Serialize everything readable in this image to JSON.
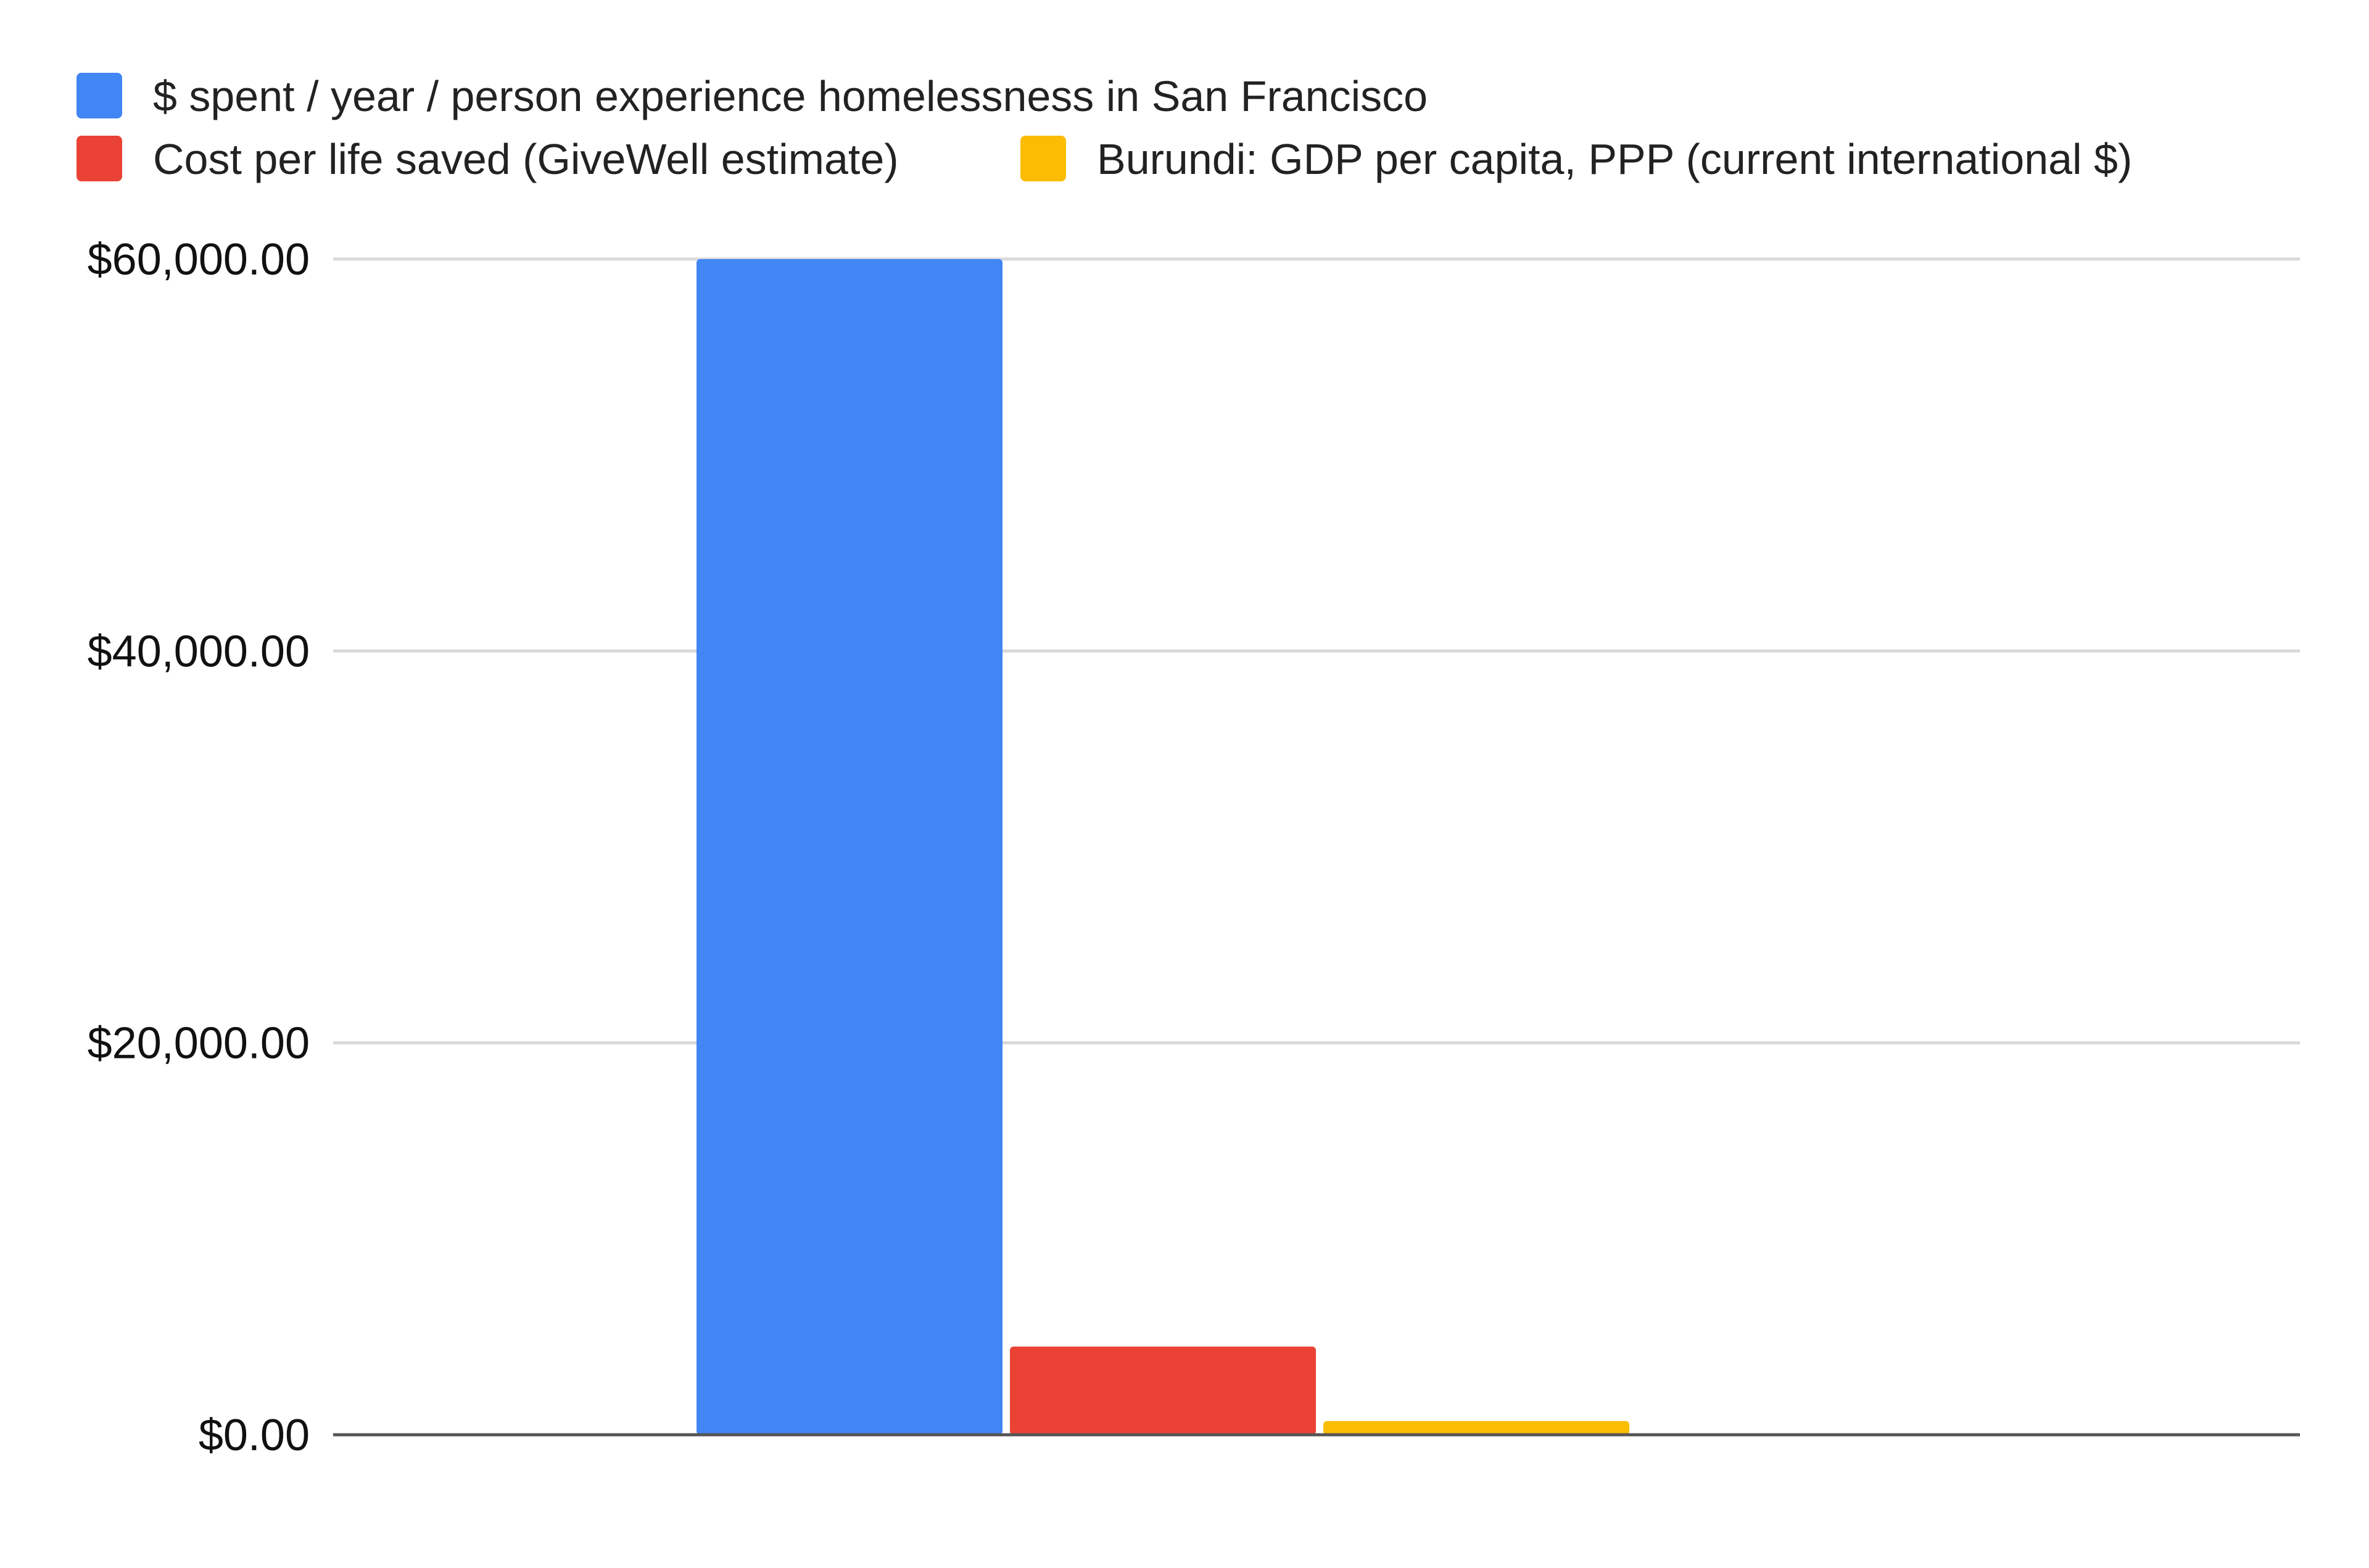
{
  "chart_data": {
    "type": "bar",
    "title": "",
    "xlabel": "",
    "ylabel": "",
    "categories": [
      ""
    ],
    "series": [
      {
        "name": "$ spent / year / person experience homelessness in San Francisco",
        "color": "#4285F4",
        "values": [
          60000
        ]
      },
      {
        "name": "Cost per life saved (GiveWell estimate)",
        "color": "#EA4335",
        "values": [
          4500
        ]
      },
      {
        "name": "Burundi: GDP per capita, PPP (current international $)",
        "color": "#FBBC04",
        "values": [
          700
        ]
      }
    ],
    "ylim": [
      0,
      60000
    ],
    "yticks": [
      {
        "value": 0,
        "label": "$0.00"
      },
      {
        "value": 20000,
        "label": "$20,000.00"
      },
      {
        "value": 40000,
        "label": "$40,000.00"
      },
      {
        "value": 60000,
        "label": "$60,000.00"
      }
    ],
    "grid": true,
    "legend_position": "top-left"
  }
}
